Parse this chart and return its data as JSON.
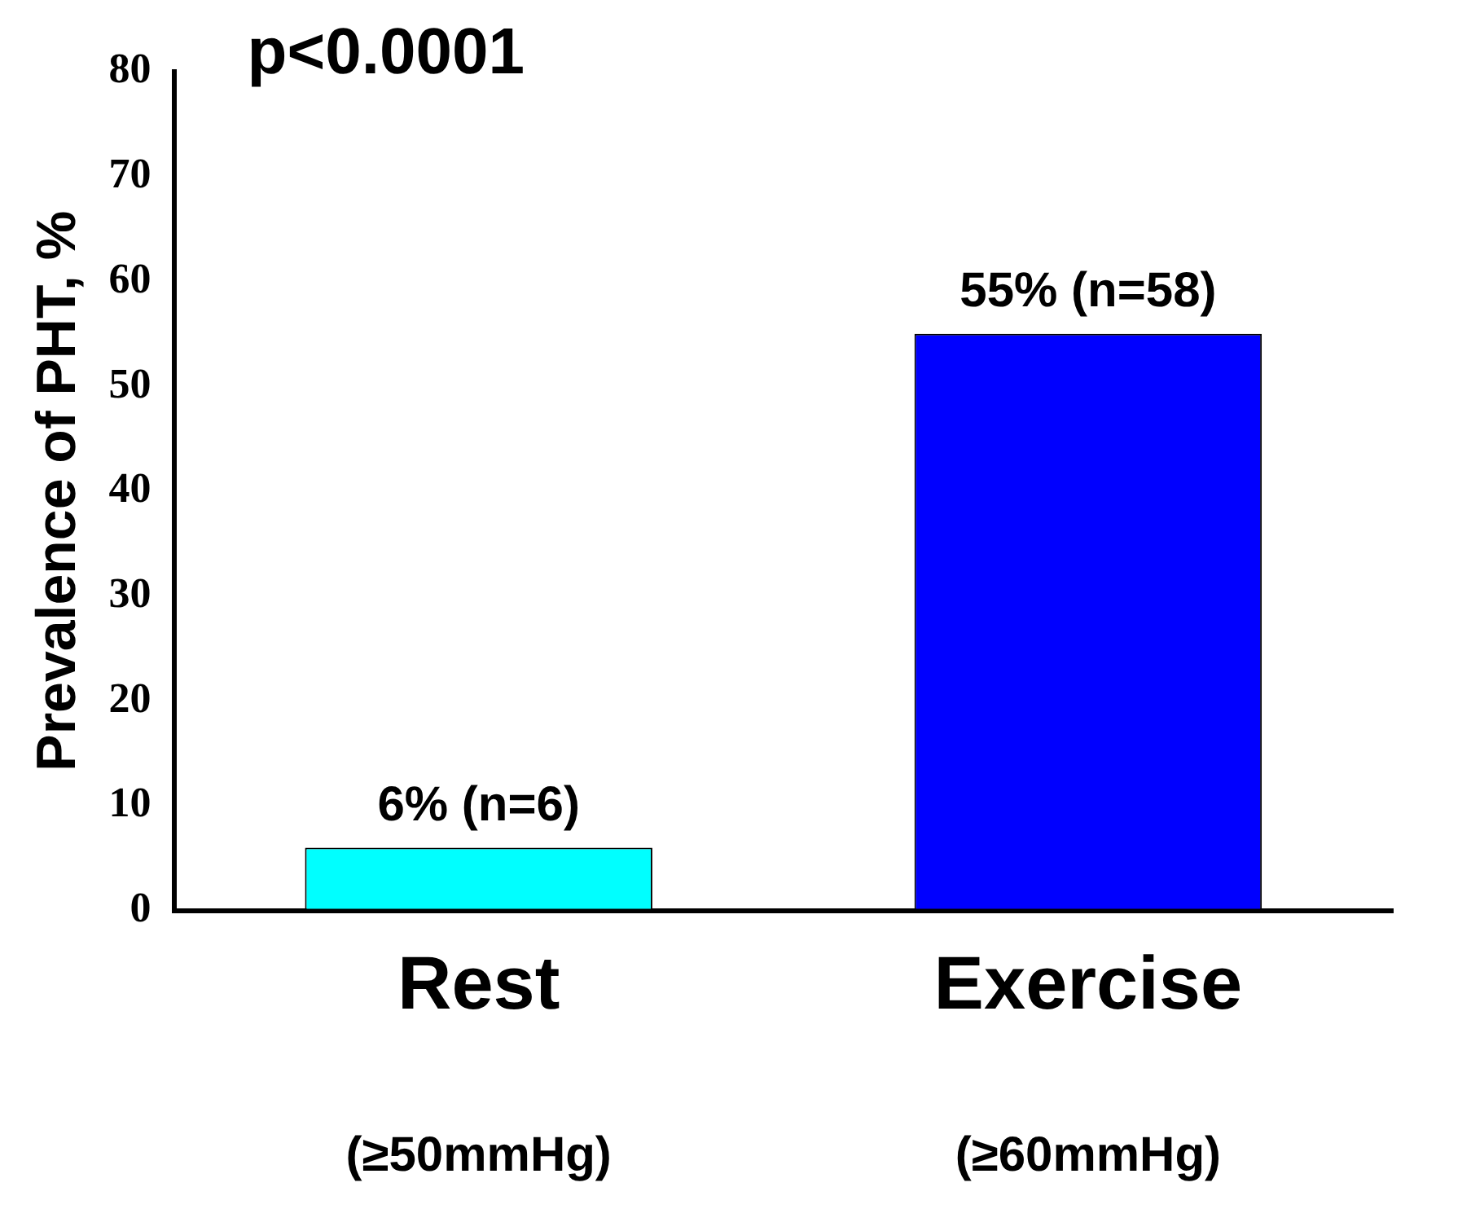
{
  "chart_data": {
    "type": "bar",
    "categories": [
      "Rest",
      "Exercise"
    ],
    "values": [
      6,
      55
    ],
    "colors": [
      "#00ffff",
      "#0000ff"
    ],
    "value_labels": [
      "6% (n=6)",
      "55% (n=58)"
    ],
    "ylabel": "Prevalence of PHT, %",
    "ylim": [
      0,
      80
    ],
    "yticks": [
      0,
      10,
      20,
      30,
      40,
      50,
      60,
      70,
      80
    ],
    "grid": false,
    "legend": false,
    "annotations": [
      "p<0.0001",
      "(≥50mmHg)",
      "(≥60mmHg)"
    ]
  }
}
